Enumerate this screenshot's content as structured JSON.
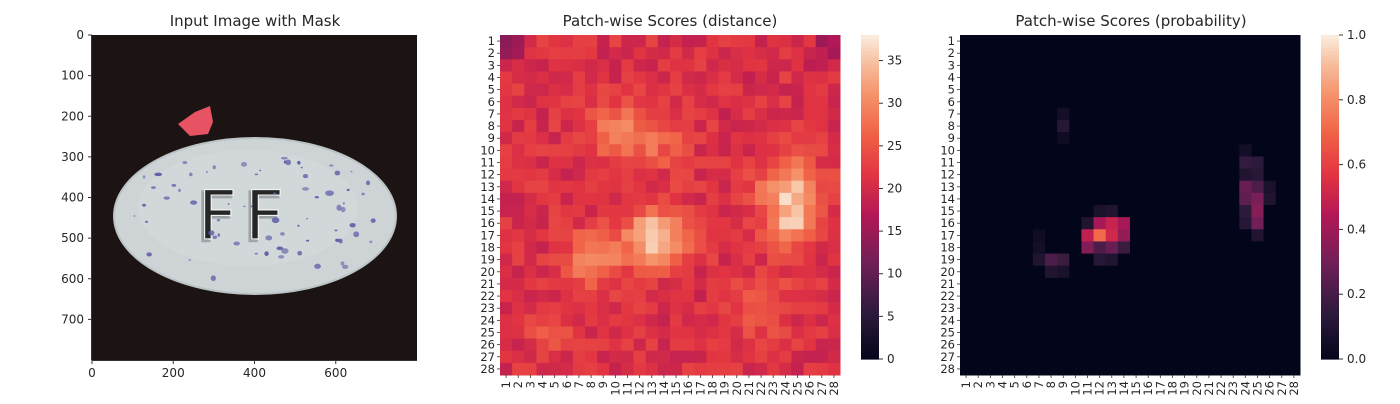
{
  "chart_data": [
    {
      "type": "image",
      "title": "Input Image with Mask",
      "xlim": [
        0,
        800
      ],
      "ylim": [
        800,
        0
      ],
      "x_ticks": [
        "0",
        "200",
        "400",
        "600"
      ],
      "y_ticks": [
        "0",
        "100",
        "200",
        "300",
        "400",
        "500",
        "600",
        "700"
      ],
      "image_content": {
        "object": "white oval pill on a dark background",
        "embossed_text": "FF",
        "speckle_color": "#5b5aa6",
        "mask_color": "#ff5a6e"
      }
    },
    {
      "type": "heatmap",
      "title": "Patch-wise Scores (distance)",
      "x_ticks": [
        "1",
        "2",
        "3",
        "4",
        "5",
        "6",
        "7",
        "8",
        "9",
        "10",
        "11",
        "12",
        "13",
        "14",
        "15",
        "16",
        "17",
        "18",
        "19",
        "20",
        "21",
        "22",
        "23",
        "24",
        "25",
        "26",
        "27",
        "28"
      ],
      "y_ticks": [
        "1",
        "2",
        "3",
        "4",
        "5",
        "6",
        "7",
        "8",
        "9",
        "10",
        "11",
        "12",
        "13",
        "14",
        "15",
        "16",
        "17",
        "18",
        "19",
        "20",
        "21",
        "22",
        "23",
        "24",
        "25",
        "26",
        "27",
        "28"
      ],
      "colorbar_ticks": [
        "0",
        "5",
        "10",
        "15",
        "20",
        "25",
        "30",
        "35"
      ],
      "vmin": 0,
      "vmax": 38,
      "colormap": "rocket",
      "base_value": 21,
      "hotspots": [
        {
          "row": 17.3,
          "col": 13.3,
          "peak": 37,
          "spread": 1.7
        },
        {
          "row": 18.8,
          "col": 8.2,
          "peak": 32,
          "spread": 1.5
        },
        {
          "row": 13.2,
          "col": 24.4,
          "peak": 33,
          "spread": 1.8
        },
        {
          "row": 16.2,
          "col": 24.6,
          "peak": 31,
          "spread": 1.5
        },
        {
          "row": 8.6,
          "col": 10.0,
          "peak": 30,
          "spread": 1.6
        },
        {
          "row": 9.0,
          "col": 13.5,
          "peak": 27,
          "spread": 1.7
        },
        {
          "row": 22.8,
          "col": 22.0,
          "peak": 27,
          "spread": 1.7
        },
        {
          "row": 24.6,
          "col": 4.5,
          "peak": 26,
          "spread": 1.3
        },
        {
          "row": 1.0,
          "col": 1.0,
          "peak": 13,
          "spread": 1.0
        },
        {
          "row": 1.5,
          "col": 28.0,
          "peak": 15,
          "spread": 1.1
        }
      ]
    },
    {
      "type": "heatmap",
      "title": "Patch-wise Scores (probability)",
      "x_ticks": [
        "1",
        "2",
        "3",
        "4",
        "5",
        "6",
        "7",
        "8",
        "9",
        "10",
        "11",
        "12",
        "13",
        "14",
        "15",
        "16",
        "17",
        "18",
        "19",
        "20",
        "21",
        "22",
        "23",
        "24",
        "25",
        "26",
        "27",
        "28"
      ],
      "y_ticks": [
        "1",
        "2",
        "3",
        "4",
        "5",
        "6",
        "7",
        "8",
        "9",
        "10",
        "11",
        "12",
        "13",
        "14",
        "15",
        "16",
        "17",
        "18",
        "19",
        "20",
        "21",
        "22",
        "23",
        "24",
        "25",
        "26",
        "27",
        "28"
      ],
      "colorbar_ticks": [
        "0.0",
        "0.2",
        "0.4",
        "0.6",
        "0.8",
        "1.0"
      ],
      "vmin": 0,
      "vmax": 1,
      "colormap": "rocket",
      "cells": [
        {
          "row": 16,
          "col": 12,
          "value": 0.42
        },
        {
          "row": 16,
          "col": 13,
          "value": 0.5
        },
        {
          "row": 16,
          "col": 14,
          "value": 0.42
        },
        {
          "row": 17,
          "col": 11,
          "value": 0.48
        },
        {
          "row": 17,
          "col": 12,
          "value": 0.72
        },
        {
          "row": 17,
          "col": 13,
          "value": 0.52
        },
        {
          "row": 17,
          "col": 14,
          "value": 0.38
        },
        {
          "row": 18,
          "col": 11,
          "value": 0.34
        },
        {
          "row": 18,
          "col": 12,
          "value": 0.22
        },
        {
          "row": 18,
          "col": 13,
          "value": 0.28
        },
        {
          "row": 18,
          "col": 14,
          "value": 0.18
        },
        {
          "row": 19,
          "col": 12,
          "value": 0.12
        },
        {
          "row": 19,
          "col": 13,
          "value": 0.1
        },
        {
          "row": 15,
          "col": 12,
          "value": 0.08
        },
        {
          "row": 15,
          "col": 13,
          "value": 0.1
        },
        {
          "row": 16,
          "col": 11,
          "value": 0.1
        },
        {
          "row": 19,
          "col": 8,
          "value": 0.22
        },
        {
          "row": 19,
          "col": 9,
          "value": 0.18
        },
        {
          "row": 19,
          "col": 7,
          "value": 0.1
        },
        {
          "row": 20,
          "col": 8,
          "value": 0.1
        },
        {
          "row": 20,
          "col": 9,
          "value": 0.08
        },
        {
          "row": 18,
          "col": 7,
          "value": 0.06
        },
        {
          "row": 17,
          "col": 7,
          "value": 0.05
        },
        {
          "row": 8,
          "col": 9,
          "value": 0.12
        },
        {
          "row": 7,
          "col": 9,
          "value": 0.06
        },
        {
          "row": 9,
          "col": 9,
          "value": 0.04
        },
        {
          "row": 11,
          "col": 24,
          "value": 0.16
        },
        {
          "row": 11,
          "col": 25,
          "value": 0.14
        },
        {
          "row": 12,
          "col": 24,
          "value": 0.1
        },
        {
          "row": 12,
          "col": 25,
          "value": 0.12
        },
        {
          "row": 13,
          "col": 24,
          "value": 0.28
        },
        {
          "row": 13,
          "col": 25,
          "value": 0.22
        },
        {
          "row": 14,
          "col": 24,
          "value": 0.26
        },
        {
          "row": 14,
          "col": 25,
          "value": 0.32
        },
        {
          "row": 15,
          "col": 25,
          "value": 0.35
        },
        {
          "row": 15,
          "col": 24,
          "value": 0.14
        },
        {
          "row": 16,
          "col": 25,
          "value": 0.3
        },
        {
          "row": 16,
          "col": 24,
          "value": 0.12
        },
        {
          "row": 14,
          "col": 26,
          "value": 0.1
        },
        {
          "row": 17,
          "col": 25,
          "value": 0.1
        },
        {
          "row": 10,
          "col": 24,
          "value": 0.06
        },
        {
          "row": 13,
          "col": 26,
          "value": 0.08
        }
      ]
    }
  ]
}
